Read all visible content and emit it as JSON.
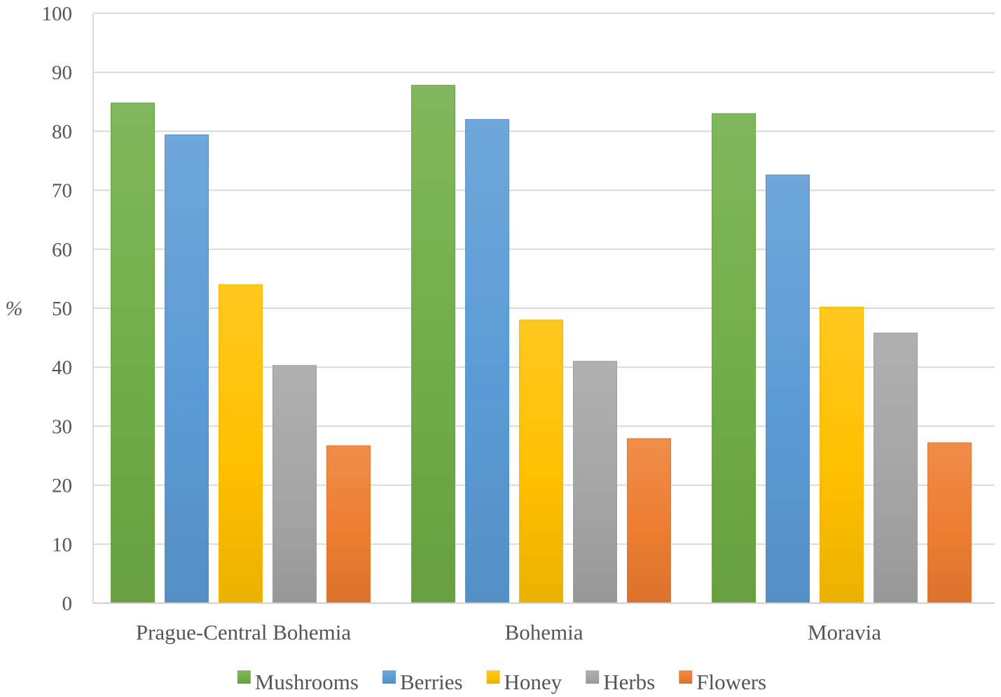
{
  "chart_data": {
    "type": "bar",
    "title": "",
    "xlabel": "",
    "ylabel": "%",
    "ylim": [
      0,
      100
    ],
    "yticks": [
      "0",
      "10",
      "20",
      "30",
      "40",
      "50",
      "60",
      "70",
      "80",
      "90",
      "100"
    ],
    "grid": true,
    "legend_position": "bottom",
    "categories": [
      "Prague-Central Bohemia",
      "Bohemia",
      "Moravia"
    ],
    "series": [
      {
        "name": "Mushrooms",
        "color": "#70AD47",
        "values": [
          84.8,
          87.8,
          83.0
        ]
      },
      {
        "name": "Berries",
        "color": "#5B9BD5",
        "values": [
          79.4,
          82.0,
          72.6
        ]
      },
      {
        "name": "Honey",
        "color": "#FFC000",
        "values": [
          54.0,
          48.0,
          50.2
        ]
      },
      {
        "name": "Herbs",
        "color": "#A5A5A5",
        "values": [
          40.3,
          41.0,
          45.8
        ]
      },
      {
        "name": "Flowers",
        "color": "#ED7D31",
        "values": [
          26.7,
          27.9,
          27.2
        ]
      }
    ]
  }
}
